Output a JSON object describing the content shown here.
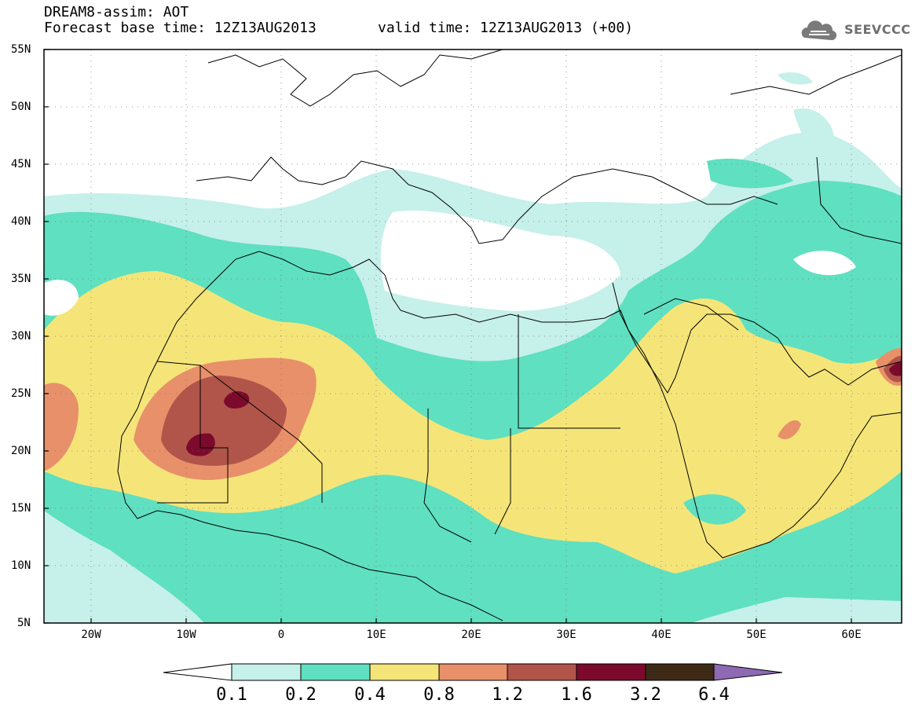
{
  "title_line1": "DREAM8-assim: AOT",
  "title_line2": "Forecast base time: 12Z13AUG2013",
  "title_valid": "valid time: 12Z13AUG2013 (+00)",
  "logo_text": "SEEVCCC",
  "lat_labels": [
    "55N",
    "50N",
    "45N",
    "40N",
    "35N",
    "30N",
    "25N",
    "20N",
    "15N",
    "10N",
    "5N"
  ],
  "lon_labels": [
    "20W",
    "10W",
    "0",
    "10E",
    "20E",
    "30E",
    "40E",
    "50E",
    "60E"
  ],
  "colorbar": {
    "levels": [
      "0.1",
      "0.2",
      "0.4",
      "0.8",
      "1.2",
      "1.6",
      "3.2",
      "6.4"
    ],
    "colors": [
      "#ffffff",
      "#c6f0ea",
      "#5fe0c0",
      "#f5e579",
      "#e8906a",
      "#b1554a",
      "#7b0a2c",
      "#3d2a16",
      "#8e6ab4"
    ]
  },
  "map": {
    "variable": "AOT",
    "lat_range": [
      5,
      55
    ],
    "lon_range": [
      -25,
      65
    ]
  }
}
